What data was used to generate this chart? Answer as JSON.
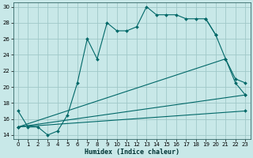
{
  "xlabel": "Humidex (Indice chaleur)",
  "bg_color": "#c8e8e8",
  "grid_color": "#a0c8c8",
  "line_color": "#006868",
  "xlim": [
    -0.5,
    23.5
  ],
  "ylim": [
    13.5,
    30.5
  ],
  "yticks": [
    14,
    16,
    18,
    20,
    22,
    24,
    26,
    28,
    30
  ],
  "xticks": [
    0,
    1,
    2,
    3,
    4,
    5,
    6,
    7,
    8,
    9,
    10,
    11,
    12,
    13,
    14,
    15,
    16,
    17,
    18,
    19,
    20,
    21,
    22,
    23
  ],
  "series1_x": [
    0,
    1,
    2,
    3,
    4,
    5,
    6,
    7,
    8,
    9,
    10,
    11,
    12,
    13,
    14,
    15,
    16,
    17,
    18,
    19,
    20
  ],
  "series1_y": [
    17,
    15,
    15,
    14,
    14.5,
    16.5,
    20.5,
    26,
    23.5,
    28,
    27,
    27,
    27.5,
    30,
    29,
    29,
    29,
    28.5,
    28.5,
    28.5,
    26.5
  ],
  "series2_x": [
    19,
    20,
    21,
    22,
    23
  ],
  "series2_y": [
    28.5,
    26.5,
    23.5,
    20.5,
    19
  ],
  "series3_x": [
    0,
    21,
    22,
    23
  ],
  "series3_y": [
    15,
    23.5,
    21,
    20.5
  ],
  "series4_x": [
    0,
    23
  ],
  "series4_y": [
    15,
    19
  ],
  "series5_x": [
    0,
    23
  ],
  "series5_y": [
    15,
    17
  ]
}
